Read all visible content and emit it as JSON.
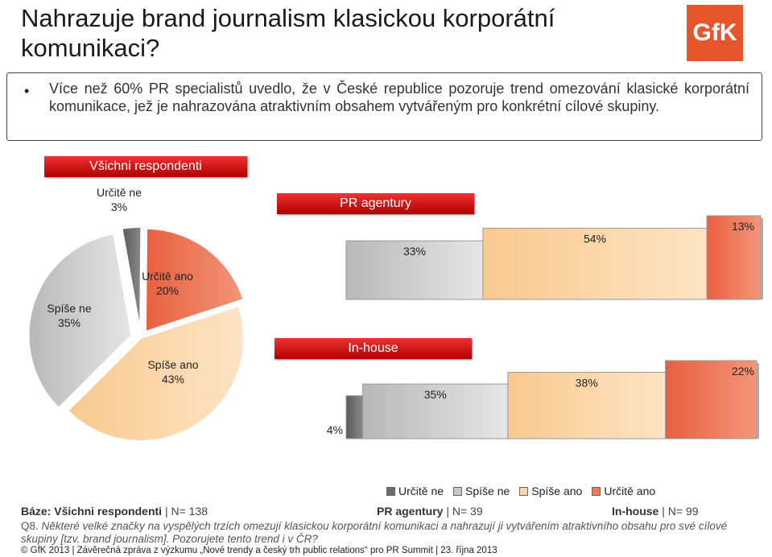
{
  "title": "Nahrazuje brand journalism klasickou korporátní komunikaci?",
  "logo_text": "GfK",
  "bullet": "Více než 60% PR specialistů uvedlo, že v České republice pozoruje trend omezování klasické korporátní komunikace, jež je nahrazována atraktivním obsahem vytvářeným pro konkrétní cílové skupiny.",
  "headers": {
    "all": "Všichni respondenti",
    "pr": "PR agentury",
    "inhouse": "In-house"
  },
  "colors": {
    "urcite_ne": "#6e6e6e",
    "spise_ne": "#c8c8c8",
    "spise_ano": "#fbd4a6",
    "urcite_ano": "#ef7a5a",
    "header_red": "#d01010"
  },
  "chart_data": [
    {
      "type": "pie",
      "title": "Všichni respondenti",
      "categories": [
        "Určitě ne",
        "Určitě ano",
        "Spíše ano",
        "Spíše ne"
      ],
      "values": [
        3,
        20,
        43,
        35
      ],
      "labels": [
        "Určitě ne\n3%",
        "Určitě ano\n20%",
        "Spíše ano\n43%",
        "Spíše ne\n35%"
      ]
    },
    {
      "type": "bar",
      "title": "PR agentury",
      "categories": [
        "Určitě ne",
        "Spíše ne",
        "Spíše ano",
        "Určitě ano"
      ],
      "values": [
        0,
        33,
        54,
        13
      ],
      "value_labels": [
        "",
        "33%",
        "54%",
        "13%"
      ]
    },
    {
      "type": "bar",
      "title": "In-house",
      "categories": [
        "Určitě ne",
        "Spíše ne",
        "Spíše ano",
        "Určitě ano"
      ],
      "values": [
        4,
        35,
        38,
        22
      ],
      "value_labels": [
        "4%",
        "35%",
        "38%",
        "22%"
      ]
    }
  ],
  "legend": [
    "Určitě ne",
    "Spíše ne",
    "Spíše ano",
    "Určitě ano"
  ],
  "base": {
    "label": "Báze:",
    "all_name": "Všichni respondenti",
    "all_n": "| N= 138",
    "pr_name": "PR agentury",
    "pr_n": "| N= 39",
    "ih_name": "In-house",
    "ih_n": "| N= 99"
  },
  "question_no": "Q8.",
  "question": "Některé velké značky na vyspělých trzích omezují klasickou korporátní komunikaci a nahrazují ji vytvářením atraktivního obsahu pro své cílové skupiny [tzv. brand journalism]. Pozorujete tento trend i v ČR?",
  "footer": "© GfK 2013 | Závěrečná zpráva z výzkumu „Nové trendy a český trh public relations“ pro PR Summit | 23. října 2013"
}
